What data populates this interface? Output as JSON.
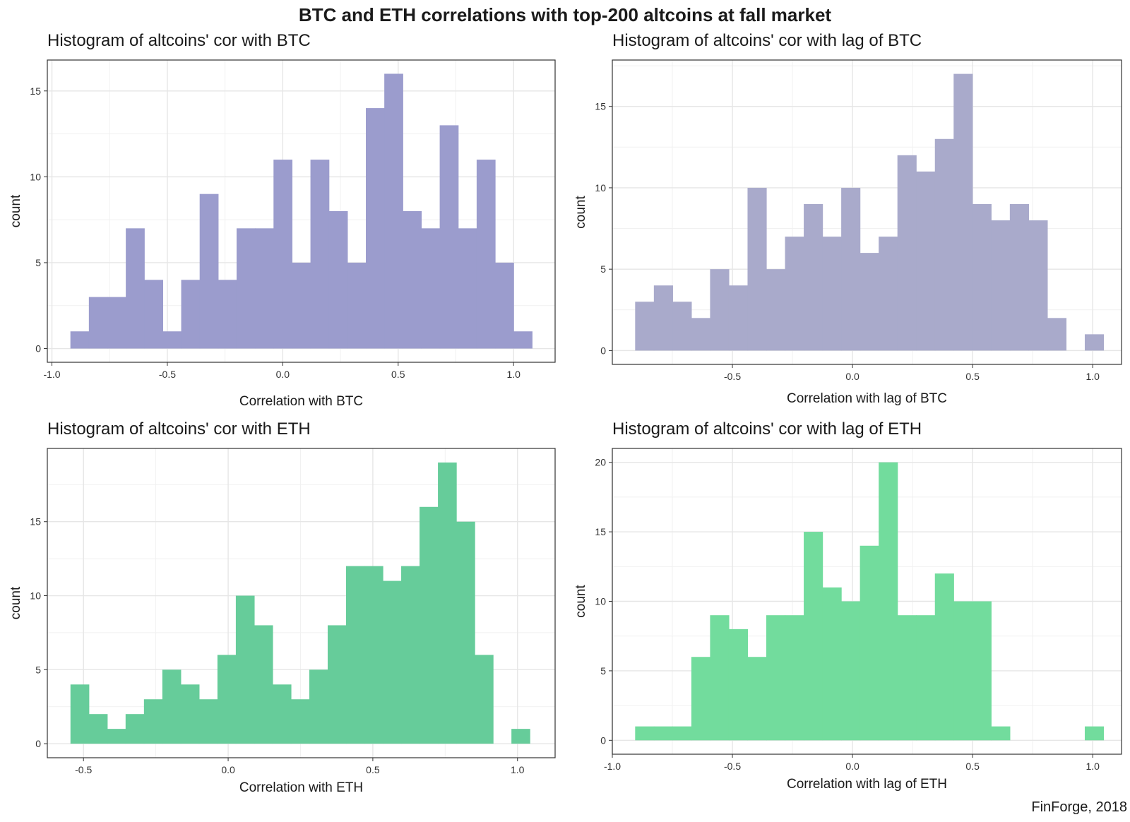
{
  "title": "BTC and ETH correlations with top-200 altcoins at fall market",
  "caption": "FinForge, 2018",
  "chart_data": [
    {
      "type": "bar",
      "title": "Histogram of altcoins' cor with BTC",
      "xlabel": "Correlation with BTC",
      "ylabel": "count",
      "color": "#9b9ccd",
      "xlim": [
        -1.02,
        1.18
      ],
      "ylim": [
        -0.8,
        16.8
      ],
      "xticks": [
        -1.0,
        -0.5,
        0.0,
        0.5,
        1.0
      ],
      "xtick_labels": [
        "-1.0",
        "-0.5",
        "0.0",
        "0.5",
        "1.0"
      ],
      "yticks": [
        0,
        5,
        10,
        15
      ],
      "ytick_labels": [
        "0",
        "5",
        "10",
        "15"
      ],
      "bin_start": -0.92,
      "bin_width": 0.08,
      "values": [
        1,
        3,
        3,
        7,
        4,
        1,
        4,
        9,
        4,
        7,
        7,
        11,
        5,
        11,
        8,
        5,
        14,
        16,
        8,
        7,
        13,
        7,
        11,
        5,
        1
      ]
    },
    {
      "type": "bar",
      "title": "Histogram of altcoins' cor with lag of BTC",
      "xlabel": "Correlation with lag of BTC",
      "ylabel": "count",
      "color": "#a9aacb",
      "xlim": [
        -1.0,
        1.12
      ],
      "ylim": [
        -0.85,
        17.85
      ],
      "xticks": [
        -0.5,
        0.0,
        0.5,
        1.0
      ],
      "xtick_labels": [
        "-0.5",
        "0.0",
        "0.5",
        "1.0"
      ],
      "yticks": [
        0,
        5,
        10,
        15
      ],
      "ytick_labels": [
        "0",
        "5",
        "10",
        "15"
      ],
      "bin_start": -0.905,
      "bin_width": 0.078,
      "values": [
        3,
        4,
        3,
        2,
        5,
        4,
        10,
        5,
        7,
        9,
        7,
        10,
        6,
        7,
        12,
        11,
        13,
        17,
        9,
        8,
        9,
        8,
        2,
        0,
        1
      ]
    },
    {
      "type": "bar",
      "title": "Histogram of altcoins' cor with ETH",
      "xlabel": "Correlation with ETH",
      "ylabel": "count",
      "color": "#66cc9a",
      "xlim": [
        -0.625,
        1.13
      ],
      "ylim": [
        -0.95,
        19.95
      ],
      "xticks": [
        -0.5,
        0.0,
        0.5,
        1.0
      ],
      "xtick_labels": [
        "-0.5",
        "0.0",
        "0.5",
        "1.0"
      ],
      "yticks": [
        0,
        5,
        10,
        15
      ],
      "ytick_labels": [
        "0",
        "5",
        "10",
        "15"
      ],
      "bin_start": -0.545,
      "bin_width": 0.0635,
      "values": [
        4,
        2,
        1,
        2,
        3,
        5,
        4,
        3,
        6,
        10,
        8,
        4,
        3,
        5,
        8,
        12,
        12,
        11,
        12,
        16,
        19,
        15,
        6,
        0,
        1
      ]
    },
    {
      "type": "bar",
      "title": "Histogram of altcoins' cor with lag of ETH",
      "xlabel": "Correlation with lag of ETH",
      "ylabel": "count",
      "color": "#72dc9d",
      "xlim": [
        -1.0,
        1.12
      ],
      "ylim": [
        -1.0,
        21.0
      ],
      "xticks": [
        -1.0,
        -0.5,
        0.0,
        0.5,
        1.0
      ],
      "xtick_labels": [
        "-1.0",
        "-0.5",
        "0.0",
        "0.5",
        "1.0"
      ],
      "yticks": [
        0,
        5,
        10,
        15,
        20
      ],
      "ytick_labels": [
        "0",
        "5",
        "10",
        "15",
        "20"
      ],
      "bin_start": -0.905,
      "bin_width": 0.078,
      "values": [
        1,
        1,
        1,
        6,
        9,
        8,
        6,
        9,
        9,
        15,
        11,
        10,
        14,
        20,
        9,
        9,
        12,
        10,
        10,
        1,
        0,
        0,
        0,
        0,
        1
      ]
    }
  ]
}
